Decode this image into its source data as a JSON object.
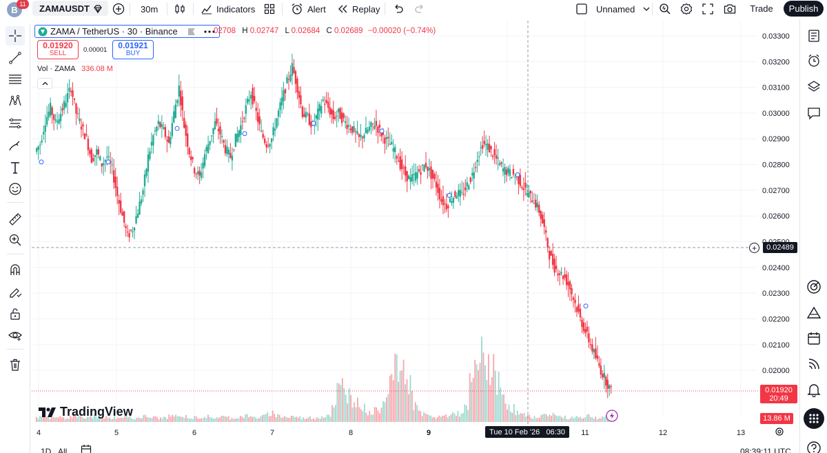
{
  "colors": {
    "up": "#22ab94",
    "down": "#f23645",
    "accent": "#2962ff",
    "dark": "#131722",
    "grid": "#f0f3fa"
  },
  "topbar": {
    "notification_count": "11",
    "avatar_letter": "B",
    "symbol": "ZAMAUSDT",
    "interval": "30m",
    "indicators_label": "Indicators",
    "alert_label": "Alert",
    "replay_label": "Replay",
    "layout_name": "Unnamed",
    "trade_label": "Trade",
    "publish_label": "Publish"
  },
  "legend": {
    "title": "ZAMA / TetherUS · 30 · Binance",
    "o_value": "02708",
    "h_label": "H",
    "h_value": "0.02747",
    "l_label": "L",
    "l_value": "0.02684",
    "c_label": "C",
    "c_value": "0.02689",
    "change": "−0.00020 (−0.74%)"
  },
  "trade_widget": {
    "sell_price": "0.01920",
    "sell_label": "SELL",
    "spread": "0.00001",
    "buy_price": "0.01921",
    "buy_label": "BUY"
  },
  "volume_legend": {
    "label": "Vol · ZAMA",
    "value": "336.08 M"
  },
  "logo_text": "TradingView",
  "price_scale": {
    "ticks": [
      "0.03300",
      "0.03200",
      "0.03100",
      "0.03000",
      "0.02900",
      "0.02800",
      "0.02700",
      "0.02600",
      "0.02500",
      "0.02400",
      "0.02300",
      "0.02200",
      "0.02100",
      "0.02000"
    ],
    "crosshair_price": "0.02489",
    "last_price": "0.01920",
    "countdown": "20:49",
    "last_volume": "13.86 M"
  },
  "time_scale": {
    "labels": [
      "4",
      "5",
      "6",
      "7",
      "8",
      "9",
      "11",
      "12",
      "13"
    ],
    "crosshair_time": "Tue 10 Feb '26   06:30"
  },
  "bottombar": {
    "range_1d": "1D",
    "range_all": "All",
    "clock": "08:39:11 UTC"
  },
  "chart_data": {
    "type": "candlestick",
    "symbol": "ZAMA / TetherUS",
    "interval": "30",
    "exchange": "Binance",
    "ylim": [
      0.0192,
      0.0334
    ],
    "x_labels": [
      "4",
      "5",
      "6",
      "7",
      "8",
      "9",
      "10",
      "11",
      "12",
      "13"
    ],
    "close_path": [
      0.0285,
      0.0288,
      0.0297,
      0.0302,
      0.0296,
      0.03,
      0.0305,
      0.031,
      0.03,
      0.0295,
      0.029,
      0.0282,
      0.0285,
      0.028,
      0.0283,
      0.0278,
      0.0268,
      0.026,
      0.0252,
      0.0255,
      0.0262,
      0.027,
      0.0283,
      0.0291,
      0.0296,
      0.0293,
      0.0288,
      0.03,
      0.031,
      0.0295,
      0.0285,
      0.0278,
      0.0275,
      0.0284,
      0.029,
      0.0296,
      0.0292,
      0.0286,
      0.0283,
      0.029,
      0.0295,
      0.0302,
      0.0308,
      0.03,
      0.0292,
      0.0288,
      0.029,
      0.0298,
      0.0305,
      0.0312,
      0.0318,
      0.031,
      0.03,
      0.0298,
      0.0295,
      0.03,
      0.0305,
      0.0302,
      0.0298,
      0.03,
      0.0297,
      0.0295,
      0.0293,
      0.029,
      0.0292,
      0.0294,
      0.0296,
      0.0293,
      0.029,
      0.0288,
      0.0285,
      0.028,
      0.0276,
      0.0274,
      0.0276,
      0.0278,
      0.028,
      0.0276,
      0.0272,
      0.0266,
      0.0264,
      0.0267,
      0.0269,
      0.0268,
      0.0272,
      0.0276,
      0.0283,
      0.0288,
      0.0287,
      0.0284,
      0.0281,
      0.0278,
      0.0277,
      0.0276,
      0.0274,
      0.0271,
      0.0268,
      0.0266,
      0.0262,
      0.0255,
      0.0245,
      0.024,
      0.0238,
      0.0236,
      0.0232,
      0.0226,
      0.022,
      0.0215,
      0.021,
      0.0205,
      0.02,
      0.0196,
      0.0192
    ],
    "volume_relative": [
      0.05,
      0.06,
      0.04,
      0.05,
      0.06,
      0.04,
      0.05,
      0.07,
      0.05,
      0.04,
      0.05,
      0.06,
      0.04,
      0.05,
      0.04,
      0.05,
      0.04,
      0.06,
      0.05,
      0.04,
      0.05,
      0.06,
      0.05,
      0.05,
      0.04,
      0.05,
      0.06,
      0.07,
      0.05,
      0.06,
      0.04,
      0.05,
      0.05,
      0.06,
      0.04,
      0.05,
      0.06,
      0.05,
      0.04,
      0.05,
      0.06,
      0.07,
      0.05,
      0.05,
      0.06,
      0.08,
      0.1,
      0.07,
      0.06,
      0.05,
      0.06,
      0.05,
      0.04,
      0.05,
      0.04,
      0.05,
      0.06,
      0.08,
      0.15,
      0.35,
      0.4,
      0.3,
      0.25,
      0.2,
      0.15,
      0.1,
      0.12,
      0.15,
      0.3,
      0.45,
      0.55,
      0.6,
      0.5,
      0.4,
      0.2,
      0.1,
      0.08,
      0.06,
      0.05,
      0.06,
      0.07,
      0.08,
      0.1,
      0.08,
      0.15,
      0.4,
      0.6,
      0.7,
      0.65,
      0.55,
      0.45,
      0.3,
      0.2,
      0.15,
      0.1,
      0.08,
      0.06,
      0.05,
      0.06,
      0.07,
      0.08,
      0.09,
      0.06,
      0.05,
      0.04,
      0.05,
      0.06,
      0.05,
      0.07,
      0.05,
      0.04,
      0.06,
      0.07
    ]
  }
}
